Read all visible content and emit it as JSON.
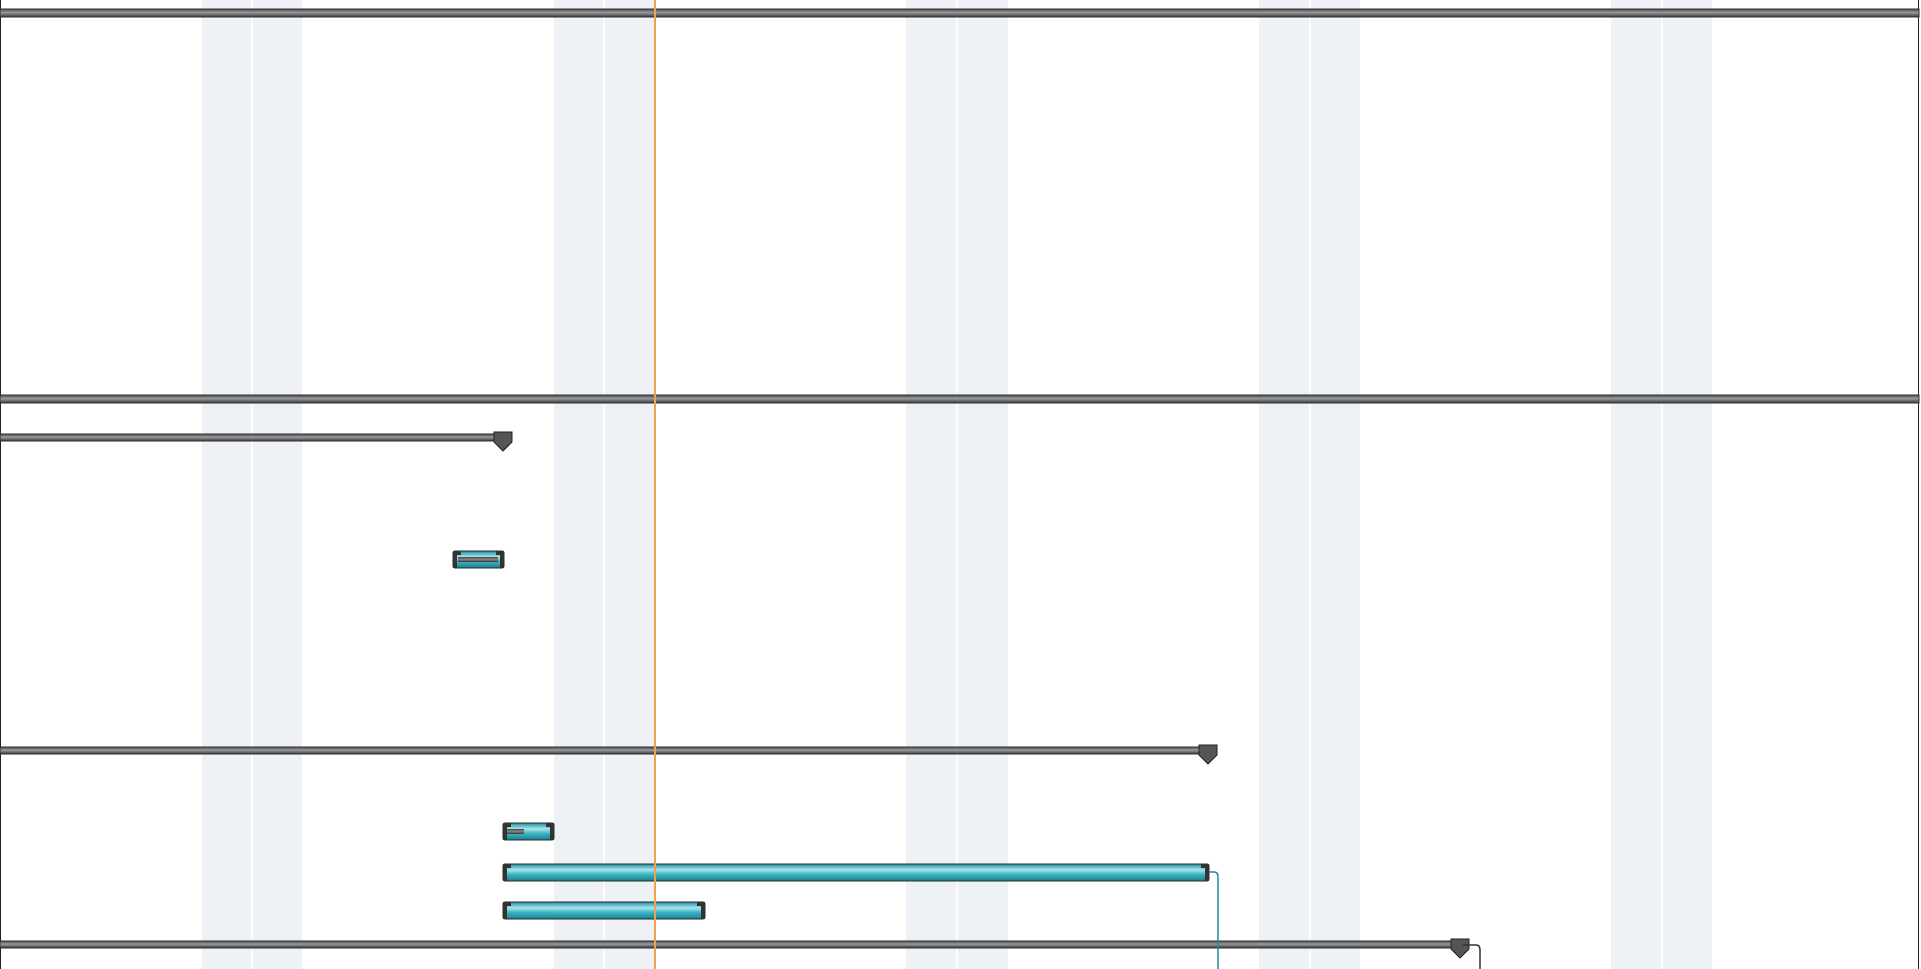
{
  "colors": {
    "background": "#ffffff",
    "weekend_band": "#eef2f7",
    "weekend_divider": "#ffffff",
    "summary_bar_fill": "#6e6e6e",
    "summary_bar_edge": "#2f2f2f",
    "task_bar_fill": "#3fb7c6",
    "task_bar_highlight": "#a9e6ee",
    "task_bar_edge": "#2a2a2a",
    "progress_fill": "#5a5a5a",
    "today_line": "#f0a050",
    "dependency_line": "#1e8a98",
    "dependency_line_dark": "#333333",
    "border": "#222222"
  },
  "timeline": {
    "view": "gantt-chart",
    "weekend_bands": 5,
    "today_marker": "today-line"
  },
  "rows": [
    {
      "type": "summary",
      "name": "summary-row-1"
    },
    {
      "type": "summary",
      "name": "summary-row-2"
    },
    {
      "type": "summary-milestone",
      "name": "summary-row-3"
    },
    {
      "type": "task",
      "name": "task-row-4",
      "progress": 0.25
    },
    {
      "type": "summary-milestone",
      "name": "summary-row-5"
    },
    {
      "type": "task",
      "name": "task-row-6",
      "progress": 0.5
    },
    {
      "type": "task",
      "name": "task-row-7",
      "progress": 0
    },
    {
      "type": "task",
      "name": "task-row-8",
      "progress": 0
    },
    {
      "type": "summary-milestone",
      "name": "summary-row-9"
    }
  ]
}
